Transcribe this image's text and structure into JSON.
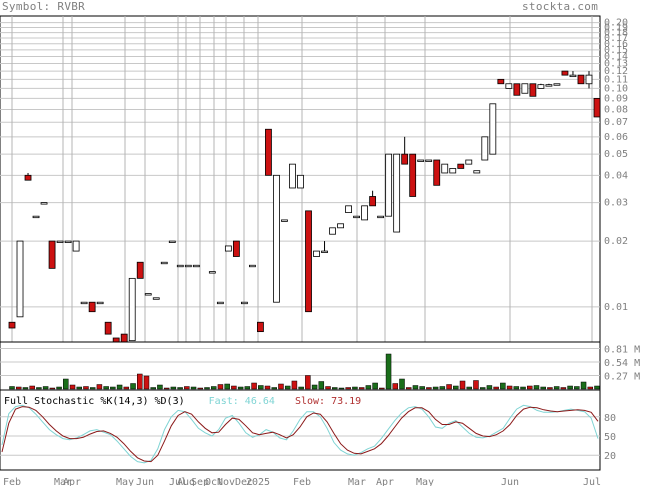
{
  "header": {
    "symbol_label": "Symbol:",
    "symbol": "RVBR",
    "brand": "stockta.com"
  },
  "stochastic": {
    "title": "Full Stochastic %K(14,3) %D(3)",
    "fast_label": "Fast:",
    "fast_value": "46.64",
    "slow_label": "Slow:",
    "slow_value": "73.19",
    "levels": [
      80,
      50,
      20
    ],
    "fast_color": "#7fd4d4",
    "slow_color": "#8b1a1a"
  },
  "volume": {
    "tick_labels": [
      "0.81 M",
      "0.54 M",
      "0.27 M"
    ],
    "ticks": [
      0.81,
      0.54,
      0.27
    ],
    "values": [
      0.05,
      0.04,
      0.03,
      0.06,
      0.03,
      0.05,
      0.02,
      0.04,
      0.2,
      0.08,
      0.04,
      0.05,
      0.03,
      0.09,
      0.05,
      0.04,
      0.08,
      0.04,
      0.11,
      0.3,
      0.26,
      0.03,
      0.08,
      0.02,
      0.04,
      0.03,
      0.05,
      0.04,
      0.02,
      0.03,
      0.05,
      0.09,
      0.1,
      0.06,
      0.04,
      0.05,
      0.12,
      0.07,
      0.06,
      0.03,
      0.1,
      0.06,
      0.16,
      0.04,
      0.27,
      0.08,
      0.15,
      0.05,
      0.03,
      0.02,
      0.03,
      0.04,
      0.03,
      0.07,
      0.12,
      0.02,
      0.7,
      0.11,
      0.2,
      0.03,
      0.07,
      0.05,
      0.03,
      0.04,
      0.05,
      0.09,
      0.06,
      0.16,
      0.04,
      0.17,
      0.03,
      0.07,
      0.04,
      0.12,
      0.06,
      0.05,
      0.04,
      0.06,
      0.07,
      0.04,
      0.03,
      0.05,
      0.03,
      0.06,
      0.05,
      0.14,
      0.04,
      0.06
    ],
    "colors": [
      "g",
      "r",
      "g",
      "r",
      "g",
      "g",
      "r",
      "g",
      "g",
      "r",
      "g",
      "r",
      "g",
      "r",
      "g",
      "g",
      "g",
      "r",
      "g",
      "r",
      "r",
      "g",
      "g",
      "r",
      "g",
      "g",
      "r",
      "g",
      "r",
      "g",
      "g",
      "r",
      "g",
      "r",
      "g",
      "g",
      "r",
      "g",
      "r",
      "g",
      "r",
      "g",
      "r",
      "g",
      "r",
      "g",
      "g",
      "r",
      "g",
      "g",
      "r",
      "g",
      "r",
      "g",
      "g",
      "r",
      "g",
      "r",
      "g",
      "r",
      "g",
      "g",
      "r",
      "g",
      "g",
      "r",
      "g",
      "r",
      "g",
      "r",
      "g",
      "g",
      "r",
      "g",
      "r",
      "g",
      "g",
      "r",
      "g",
      "g",
      "r",
      "g",
      "r",
      "g",
      "g",
      "g",
      "r",
      "g"
    ]
  },
  "price_axis": {
    "labels": [
      "0.20",
      "0.19",
      "0.18",
      "0.17",
      "0.16",
      "0.15",
      "0.14",
      "0.13",
      "0.12",
      "0.11",
      "0.10",
      "0.09",
      "0.08",
      "0.07",
      "0.06",
      "0.05",
      "0.04",
      "0.03",
      "0.02",
      "0.01"
    ],
    "ticks": [
      0.2,
      0.19,
      0.18,
      0.17,
      0.16,
      0.15,
      0.14,
      0.13,
      0.12,
      0.11,
      0.1,
      0.09,
      0.08,
      0.07,
      0.06,
      0.05,
      0.04,
      0.03,
      0.02,
      0.01
    ]
  },
  "x_axis_labels": [
    "Feb",
    "Mar",
    "Apr",
    "May",
    "Jun",
    "Jul",
    "Aug",
    "Sep",
    "Oct",
    "Nov",
    "Dec",
    "2025",
    "Feb",
    "Mar",
    "Apr",
    "May",
    "Jun",
    "Jul"
  ],
  "chart_data": {
    "type": "candlestick",
    "title": "",
    "y_scale": "log",
    "ylim": [
      0.0072,
      0.21
    ],
    "x": [
      "Feb",
      "Mar",
      "Apr",
      "May",
      "Jun",
      "Jul",
      "Aug",
      "Sep",
      "Oct",
      "Nov",
      "Dec",
      "2025",
      "Feb",
      "Mar",
      "Apr",
      "May",
      "Jun",
      "Jul"
    ],
    "candles": [
      {
        "x": "Feb",
        "o": 0.0085,
        "h": 0.0085,
        "l": 0.008,
        "c": 0.008,
        "up": false
      },
      {
        "x": "Feb",
        "o": 0.009,
        "h": 0.02,
        "l": 0.009,
        "c": 0.02,
        "up": true
      },
      {
        "x": "Feb",
        "o": 0.04,
        "h": 0.041,
        "l": 0.038,
        "c": 0.038,
        "up": false
      },
      {
        "x": "Feb",
        "o": 0.026,
        "h": 0.026,
        "l": 0.026,
        "c": 0.026,
        "up": true
      },
      {
        "x": "Mar",
        "o": 0.03,
        "h": 0.03,
        "l": 0.03,
        "c": 0.03,
        "up": true
      },
      {
        "x": "Mar",
        "o": 0.02,
        "h": 0.02,
        "l": 0.015,
        "c": 0.015,
        "up": false
      },
      {
        "x": "Mar",
        "o": 0.02,
        "h": 0.02,
        "l": 0.02,
        "c": 0.02,
        "up": true
      },
      {
        "x": "Apr",
        "o": 0.02,
        "h": 0.02,
        "l": 0.02,
        "c": 0.02,
        "up": true
      },
      {
        "x": "Apr",
        "o": 0.018,
        "h": 0.02,
        "l": 0.018,
        "c": 0.02,
        "up": true
      },
      {
        "x": "Apr",
        "o": 0.0105,
        "h": 0.0105,
        "l": 0.0105,
        "c": 0.0105,
        "up": true
      },
      {
        "x": "Apr",
        "o": 0.0105,
        "h": 0.0105,
        "l": 0.0095,
        "c": 0.0095,
        "up": false
      },
      {
        "x": "Apr",
        "o": 0.0105,
        "h": 0.0105,
        "l": 0.0105,
        "c": 0.0105,
        "up": true
      },
      {
        "x": "May",
        "o": 0.0085,
        "h": 0.0085,
        "l": 0.0075,
        "c": 0.0075,
        "up": false
      },
      {
        "x": "May",
        "o": 0.0072,
        "h": 0.0072,
        "l": 0.0065,
        "c": 0.0065,
        "up": false
      },
      {
        "x": "May",
        "o": 0.0075,
        "h": 0.0075,
        "l": 0.0068,
        "c": 0.0068,
        "up": false
      },
      {
        "x": "May",
        "o": 0.007,
        "h": 0.0135,
        "l": 0.007,
        "c": 0.0135,
        "up": true
      },
      {
        "x": "May",
        "o": 0.016,
        "h": 0.016,
        "l": 0.0135,
        "c": 0.0135,
        "up": false
      },
      {
        "x": "Jun",
        "o": 0.0115,
        "h": 0.0115,
        "l": 0.0115,
        "c": 0.0115,
        "up": true
      },
      {
        "x": "Jun",
        "o": 0.011,
        "h": 0.011,
        "l": 0.011,
        "c": 0.011,
        "up": true
      },
      {
        "x": "Jun",
        "o": 0.016,
        "h": 0.016,
        "l": 0.016,
        "c": 0.016,
        "up": true
      },
      {
        "x": "Jun",
        "o": 0.02,
        "h": 0.02,
        "l": 0.02,
        "c": 0.02,
        "up": true
      },
      {
        "x": "Jul",
        "o": 0.0155,
        "h": 0.0155,
        "l": 0.0155,
        "c": 0.0155,
        "up": true
      },
      {
        "x": "Jul",
        "o": 0.0155,
        "h": 0.0155,
        "l": 0.0155,
        "c": 0.0155,
        "up": true
      },
      {
        "x": "Jul",
        "o": 0.0155,
        "h": 0.0155,
        "l": 0.0155,
        "c": 0.0155,
        "up": true
      },
      {
        "x": "Jul",
        "o": 0.0065,
        "h": 0.0065,
        "l": 0.0065,
        "c": 0.0065,
        "up": true
      },
      {
        "x": "Aug",
        "o": 0.0145,
        "h": 0.0145,
        "l": 0.0145,
        "c": 0.0145,
        "up": true
      },
      {
        "x": "Aug",
        "o": 0.0105,
        "h": 0.0105,
        "l": 0.0105,
        "c": 0.0105,
        "up": true
      },
      {
        "x": "Sep",
        "o": 0.018,
        "h": 0.019,
        "l": 0.018,
        "c": 0.019,
        "up": true
      },
      {
        "x": "Sep",
        "o": 0.02,
        "h": 0.02,
        "l": 0.017,
        "c": 0.017,
        "up": false
      },
      {
        "x": "Sep",
        "o": 0.0105,
        "h": 0.0105,
        "l": 0.0105,
        "c": 0.0105,
        "up": true
      },
      {
        "x": "Oct",
        "o": 0.0155,
        "h": 0.0155,
        "l": 0.0155,
        "c": 0.0155,
        "up": true
      },
      {
        "x": "Oct",
        "o": 0.0085,
        "h": 0.0085,
        "l": 0.0077,
        "c": 0.0077,
        "up": false
      },
      {
        "x": "Nov",
        "o": 0.065,
        "h": 0.065,
        "l": 0.04,
        "c": 0.04,
        "up": false
      },
      {
        "x": "Nov",
        "o": 0.0105,
        "h": 0.04,
        "l": 0.0105,
        "c": 0.04,
        "up": true
      },
      {
        "x": "Nov",
        "o": 0.025,
        "h": 0.025,
        "l": 0.025,
        "c": 0.025,
        "up": true
      },
      {
        "x": "Dec",
        "o": 0.035,
        "h": 0.045,
        "l": 0.035,
        "c": 0.045,
        "up": true
      },
      {
        "x": "Dec",
        "o": 0.04,
        "h": 0.04,
        "l": 0.035,
        "c": 0.035,
        "up": true
      },
      {
        "x": "Dec",
        "o": 0.0275,
        "h": 0.0275,
        "l": 0.0095,
        "c": 0.0095,
        "up": false
      },
      {
        "x": "2025",
        "o": 0.017,
        "h": 0.018,
        "l": 0.017,
        "c": 0.018,
        "up": true
      },
      {
        "x": "2025",
        "o": 0.018,
        "h": 0.02,
        "l": 0.018,
        "c": 0.018,
        "up": true
      },
      {
        "x": "2025",
        "o": 0.0215,
        "h": 0.023,
        "l": 0.0215,
        "c": 0.023,
        "up": true
      },
      {
        "x": "Feb",
        "o": 0.023,
        "h": 0.024,
        "l": 0.023,
        "c": 0.024,
        "up": true
      },
      {
        "x": "Feb",
        "o": 0.027,
        "h": 0.029,
        "l": 0.027,
        "c": 0.029,
        "up": true
      },
      {
        "x": "Feb",
        "o": 0.026,
        "h": 0.026,
        "l": 0.026,
        "c": 0.026,
        "up": true
      },
      {
        "x": "Feb",
        "o": 0.025,
        "h": 0.029,
        "l": 0.025,
        "c": 0.029,
        "up": true
      },
      {
        "x": "Mar",
        "o": 0.032,
        "h": 0.034,
        "l": 0.029,
        "c": 0.029,
        "up": false
      },
      {
        "x": "Mar",
        "o": 0.026,
        "h": 0.026,
        "l": 0.026,
        "c": 0.026,
        "up": true
      },
      {
        "x": "Mar",
        "o": 0.026,
        "h": 0.05,
        "l": 0.026,
        "c": 0.05,
        "up": true
      },
      {
        "x": "Mar",
        "o": 0.022,
        "h": 0.05,
        "l": 0.022,
        "c": 0.05,
        "up": true
      },
      {
        "x": "Mar",
        "o": 0.05,
        "h": 0.06,
        "l": 0.045,
        "c": 0.045,
        "up": false
      },
      {
        "x": "Apr",
        "o": 0.05,
        "h": 0.05,
        "l": 0.032,
        "c": 0.032,
        "up": false
      },
      {
        "x": "Apr",
        "o": 0.047,
        "h": 0.047,
        "l": 0.047,
        "c": 0.047,
        "up": true
      },
      {
        "x": "Apr",
        "o": 0.047,
        "h": 0.047,
        "l": 0.047,
        "c": 0.047,
        "up": true
      },
      {
        "x": "Apr",
        "o": 0.047,
        "h": 0.047,
        "l": 0.036,
        "c": 0.036,
        "up": false
      },
      {
        "x": "May",
        "o": 0.041,
        "h": 0.045,
        "l": 0.041,
        "c": 0.045,
        "up": true
      },
      {
        "x": "May",
        "o": 0.043,
        "h": 0.043,
        "l": 0.041,
        "c": 0.041,
        "up": true
      },
      {
        "x": "May",
        "o": 0.045,
        "h": 0.045,
        "l": 0.043,
        "c": 0.043,
        "up": false
      },
      {
        "x": "May",
        "o": 0.047,
        "h": 0.047,
        "l": 0.045,
        "c": 0.045,
        "up": true
      },
      {
        "x": "May",
        "o": 0.041,
        "h": 0.042,
        "l": 0.041,
        "c": 0.042,
        "up": true
      },
      {
        "x": "May",
        "o": 0.047,
        "h": 0.06,
        "l": 0.047,
        "c": 0.06,
        "up": true
      },
      {
        "x": "May",
        "o": 0.05,
        "h": 0.085,
        "l": 0.05,
        "c": 0.085,
        "up": true
      },
      {
        "x": "Jun",
        "o": 0.11,
        "h": 0.11,
        "l": 0.105,
        "c": 0.105,
        "up": false
      },
      {
        "x": "Jun",
        "o": 0.1,
        "h": 0.105,
        "l": 0.1,
        "c": 0.105,
        "up": true
      },
      {
        "x": "Jun",
        "o": 0.105,
        "h": 0.105,
        "l": 0.093,
        "c": 0.093,
        "up": false
      },
      {
        "x": "Jun",
        "o": 0.095,
        "h": 0.105,
        "l": 0.095,
        "c": 0.105,
        "up": true
      },
      {
        "x": "Jun",
        "o": 0.105,
        "h": 0.105,
        "l": 0.092,
        "c": 0.092,
        "up": false
      },
      {
        "x": "Jun",
        "o": 0.1,
        "h": 0.105,
        "l": 0.1,
        "c": 0.104,
        "up": true
      },
      {
        "x": "Jun",
        "o": 0.104,
        "h": 0.105,
        "l": 0.104,
        "c": 0.104,
        "up": true
      },
      {
        "x": "Jun",
        "o": 0.104,
        "h": 0.105,
        "l": 0.104,
        "c": 0.105,
        "up": true
      },
      {
        "x": "Jul",
        "o": 0.12,
        "h": 0.12,
        "l": 0.115,
        "c": 0.115,
        "up": false
      },
      {
        "x": "Jul",
        "o": 0.115,
        "h": 0.12,
        "l": 0.115,
        "c": 0.115,
        "up": true
      },
      {
        "x": "Jul",
        "o": 0.115,
        "h": 0.115,
        "l": 0.105,
        "c": 0.105,
        "up": false
      },
      {
        "x": "Jul",
        "o": 0.115,
        "h": 0.12,
        "l": 0.1,
        "c": 0.105,
        "up": true
      },
      {
        "x": "Jul",
        "o": 0.09,
        "h": 0.09,
        "l": 0.074,
        "c": 0.074,
        "up": false
      }
    ],
    "fast_k": [
      36,
      85,
      96,
      98,
      94,
      84,
      72,
      60,
      52,
      46,
      44,
      47,
      52,
      58,
      60,
      56,
      52,
      42,
      30,
      18,
      10,
      8,
      12,
      30,
      60,
      80,
      90,
      88,
      76,
      62,
      55,
      50,
      60,
      78,
      82,
      70,
      55,
      48,
      52,
      60,
      56,
      47,
      44,
      58,
      76,
      88,
      88,
      80,
      62,
      40,
      28,
      22,
      20,
      24,
      30,
      34,
      46,
      60,
      74,
      86,
      94,
      96,
      92,
      80,
      64,
      62,
      70,
      74,
      64,
      54,
      48,
      47,
      50,
      56,
      62,
      78,
      92,
      98,
      96,
      90,
      87,
      87,
      88,
      90,
      92,
      90,
      88,
      78,
      46
    ],
    "slow_d": [
      25,
      70,
      92,
      96,
      95,
      90,
      80,
      68,
      58,
      50,
      46,
      46,
      48,
      53,
      57,
      58,
      54,
      48,
      38,
      26,
      16,
      11,
      10,
      20,
      42,
      66,
      82,
      88,
      84,
      72,
      62,
      55,
      56,
      68,
      78,
      76,
      66,
      55,
      52,
      54,
      56,
      52,
      47,
      52,
      64,
      80,
      86,
      84,
      72,
      54,
      38,
      28,
      23,
      22,
      26,
      30,
      38,
      50,
      64,
      78,
      88,
      94,
      94,
      88,
      76,
      68,
      68,
      72,
      70,
      62,
      54,
      50,
      49,
      52,
      58,
      68,
      82,
      92,
      95,
      94,
      91,
      89,
      88,
      89,
      90,
      91,
      90,
      87,
      73
    ]
  }
}
